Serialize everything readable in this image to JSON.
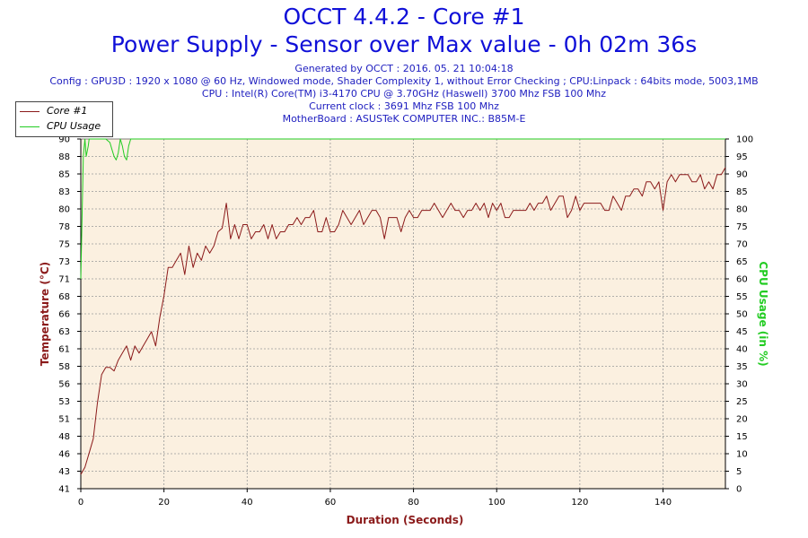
{
  "header": {
    "title": "OCCT 4.4.2 - Core #1",
    "subtitle": "Power Supply - Sensor over Max value - 0h 02m 36s",
    "generated": "Generated by OCCT : 2016. 05. 21 10:04:18",
    "config": "Config : GPU3D : 1920 x 1080 @ 60 Hz, Windowed mode, Shader Complexity 1, without Error Checking ; CPU:Linpack : 64bits mode, 5003,1MB",
    "cpu": "CPU : Intel(R) Core(TM) i3-4170 CPU @ 3.70GHz (Haswell) 3700 Mhz FSB 100 Mhz",
    "clock": "Current clock : 3691 Mhz FSB 100 Mhz",
    "motherboard": "MotherBoard : ASUSTeK COMPUTER INC.: B85M-E"
  },
  "chart_data": {
    "type": "line",
    "xlabel": "Duration (Seconds)",
    "ylabel_left": "Temperature (°C)",
    "ylabel_right": "CPU Usage (in %)",
    "xlim": [
      0,
      155
    ],
    "ylim_left": [
      41,
      90
    ],
    "ylim_right": [
      0,
      100
    ],
    "x_ticks": [
      "0",
      "20",
      "40",
      "60",
      "80",
      "100",
      "120",
      "140"
    ],
    "left_ticks": [
      "41",
      "43",
      "46",
      "48",
      "51",
      "53",
      "56",
      "58",
      "61",
      "63",
      "66",
      "68",
      "71",
      "73",
      "75",
      "78",
      "80",
      "83",
      "85",
      "88",
      "90"
    ],
    "right_ticks": [
      "0",
      "5",
      "10",
      "15",
      "20",
      "25",
      "30",
      "35",
      "40",
      "45",
      "50",
      "55",
      "60",
      "65",
      "70",
      "75",
      "80",
      "85",
      "90",
      "95",
      "100"
    ],
    "grid": true,
    "legend": "top-left",
    "colors": {
      "core": "#8b1a1a",
      "cpu": "#22cc22",
      "plot_bg": "#fbf0e0",
      "grid": "#999999"
    },
    "series": [
      {
        "name": "Core #1",
        "axis": "left",
        "color": "#8b1a1a",
        "x": [
          0,
          1,
          2,
          3,
          4,
          5,
          6,
          7,
          8,
          9,
          10,
          11,
          12,
          13,
          14,
          15,
          16,
          17,
          18,
          19,
          20,
          21,
          22,
          23,
          24,
          25,
          26,
          27,
          28,
          29,
          30,
          31,
          32,
          33,
          34,
          35,
          36,
          37,
          38,
          39,
          40,
          41,
          42,
          43,
          44,
          45,
          46,
          47,
          48,
          49,
          50,
          51,
          52,
          53,
          54,
          55,
          56,
          57,
          58,
          59,
          60,
          61,
          62,
          63,
          64,
          65,
          66,
          67,
          68,
          69,
          70,
          71,
          72,
          73,
          74,
          75,
          76,
          77,
          78,
          79,
          80,
          81,
          82,
          83,
          84,
          85,
          86,
          87,
          88,
          89,
          90,
          91,
          92,
          93,
          94,
          95,
          96,
          97,
          98,
          99,
          100,
          101,
          102,
          103,
          104,
          105,
          106,
          107,
          108,
          109,
          110,
          111,
          112,
          113,
          114,
          115,
          116,
          117,
          118,
          119,
          120,
          121,
          122,
          123,
          124,
          125,
          126,
          127,
          128,
          129,
          130,
          131,
          132,
          133,
          134,
          135,
          136,
          137,
          138,
          139,
          140,
          141,
          142,
          143,
          144,
          145,
          146,
          147,
          148,
          149,
          150,
          151,
          152,
          153,
          154,
          155
        ],
        "values": [
          43,
          44,
          46,
          48,
          53,
          57,
          58,
          58,
          57.5,
          59,
          60,
          61,
          59,
          61,
          60,
          61,
          62,
          63,
          61,
          65,
          68,
          72,
          72,
          73,
          74,
          71,
          75,
          72,
          74,
          73,
          75,
          74,
          75,
          77,
          77.5,
          81,
          76,
          78,
          76,
          78,
          78,
          76,
          77,
          77,
          78,
          76,
          78,
          76,
          77,
          77,
          78,
          78,
          79,
          78,
          79,
          79,
          80,
          77,
          77,
          79,
          77,
          77,
          78,
          80,
          79,
          78,
          79,
          80,
          78,
          79,
          80,
          80,
          79,
          76,
          79,
          79,
          79,
          77,
          79,
          80,
          79,
          79,
          80,
          80,
          80,
          81,
          80,
          79,
          80,
          81,
          80,
          80,
          79,
          80,
          80,
          81,
          80,
          81,
          79,
          81,
          80,
          81,
          79,
          79,
          80,
          80,
          80,
          80,
          81,
          80,
          81,
          81,
          82,
          80,
          81,
          82,
          82,
          79,
          80,
          82,
          80,
          81,
          81,
          81,
          81,
          81,
          80,
          80,
          82,
          81,
          80,
          82,
          82,
          83,
          83,
          82,
          84,
          84,
          83,
          84,
          80,
          84,
          85,
          84,
          85,
          85,
          85,
          84,
          84,
          85,
          83,
          84,
          83,
          85,
          85,
          86
        ]
      },
      {
        "name": "CPU Usage",
        "axis": "right",
        "color": "#22cc22",
        "x": [
          0,
          0.6,
          1,
          1.3,
          1.8,
          2,
          6,
          7,
          7.5,
          8,
          8.5,
          9,
          9.5,
          10,
          10.5,
          11,
          11.5,
          12,
          155
        ],
        "values": [
          60,
          95,
          100,
          95,
          98,
          100,
          100,
          99,
          97,
          95,
          94,
          96,
          100,
          98,
          95,
          94,
          98,
          100,
          100
        ]
      }
    ]
  }
}
